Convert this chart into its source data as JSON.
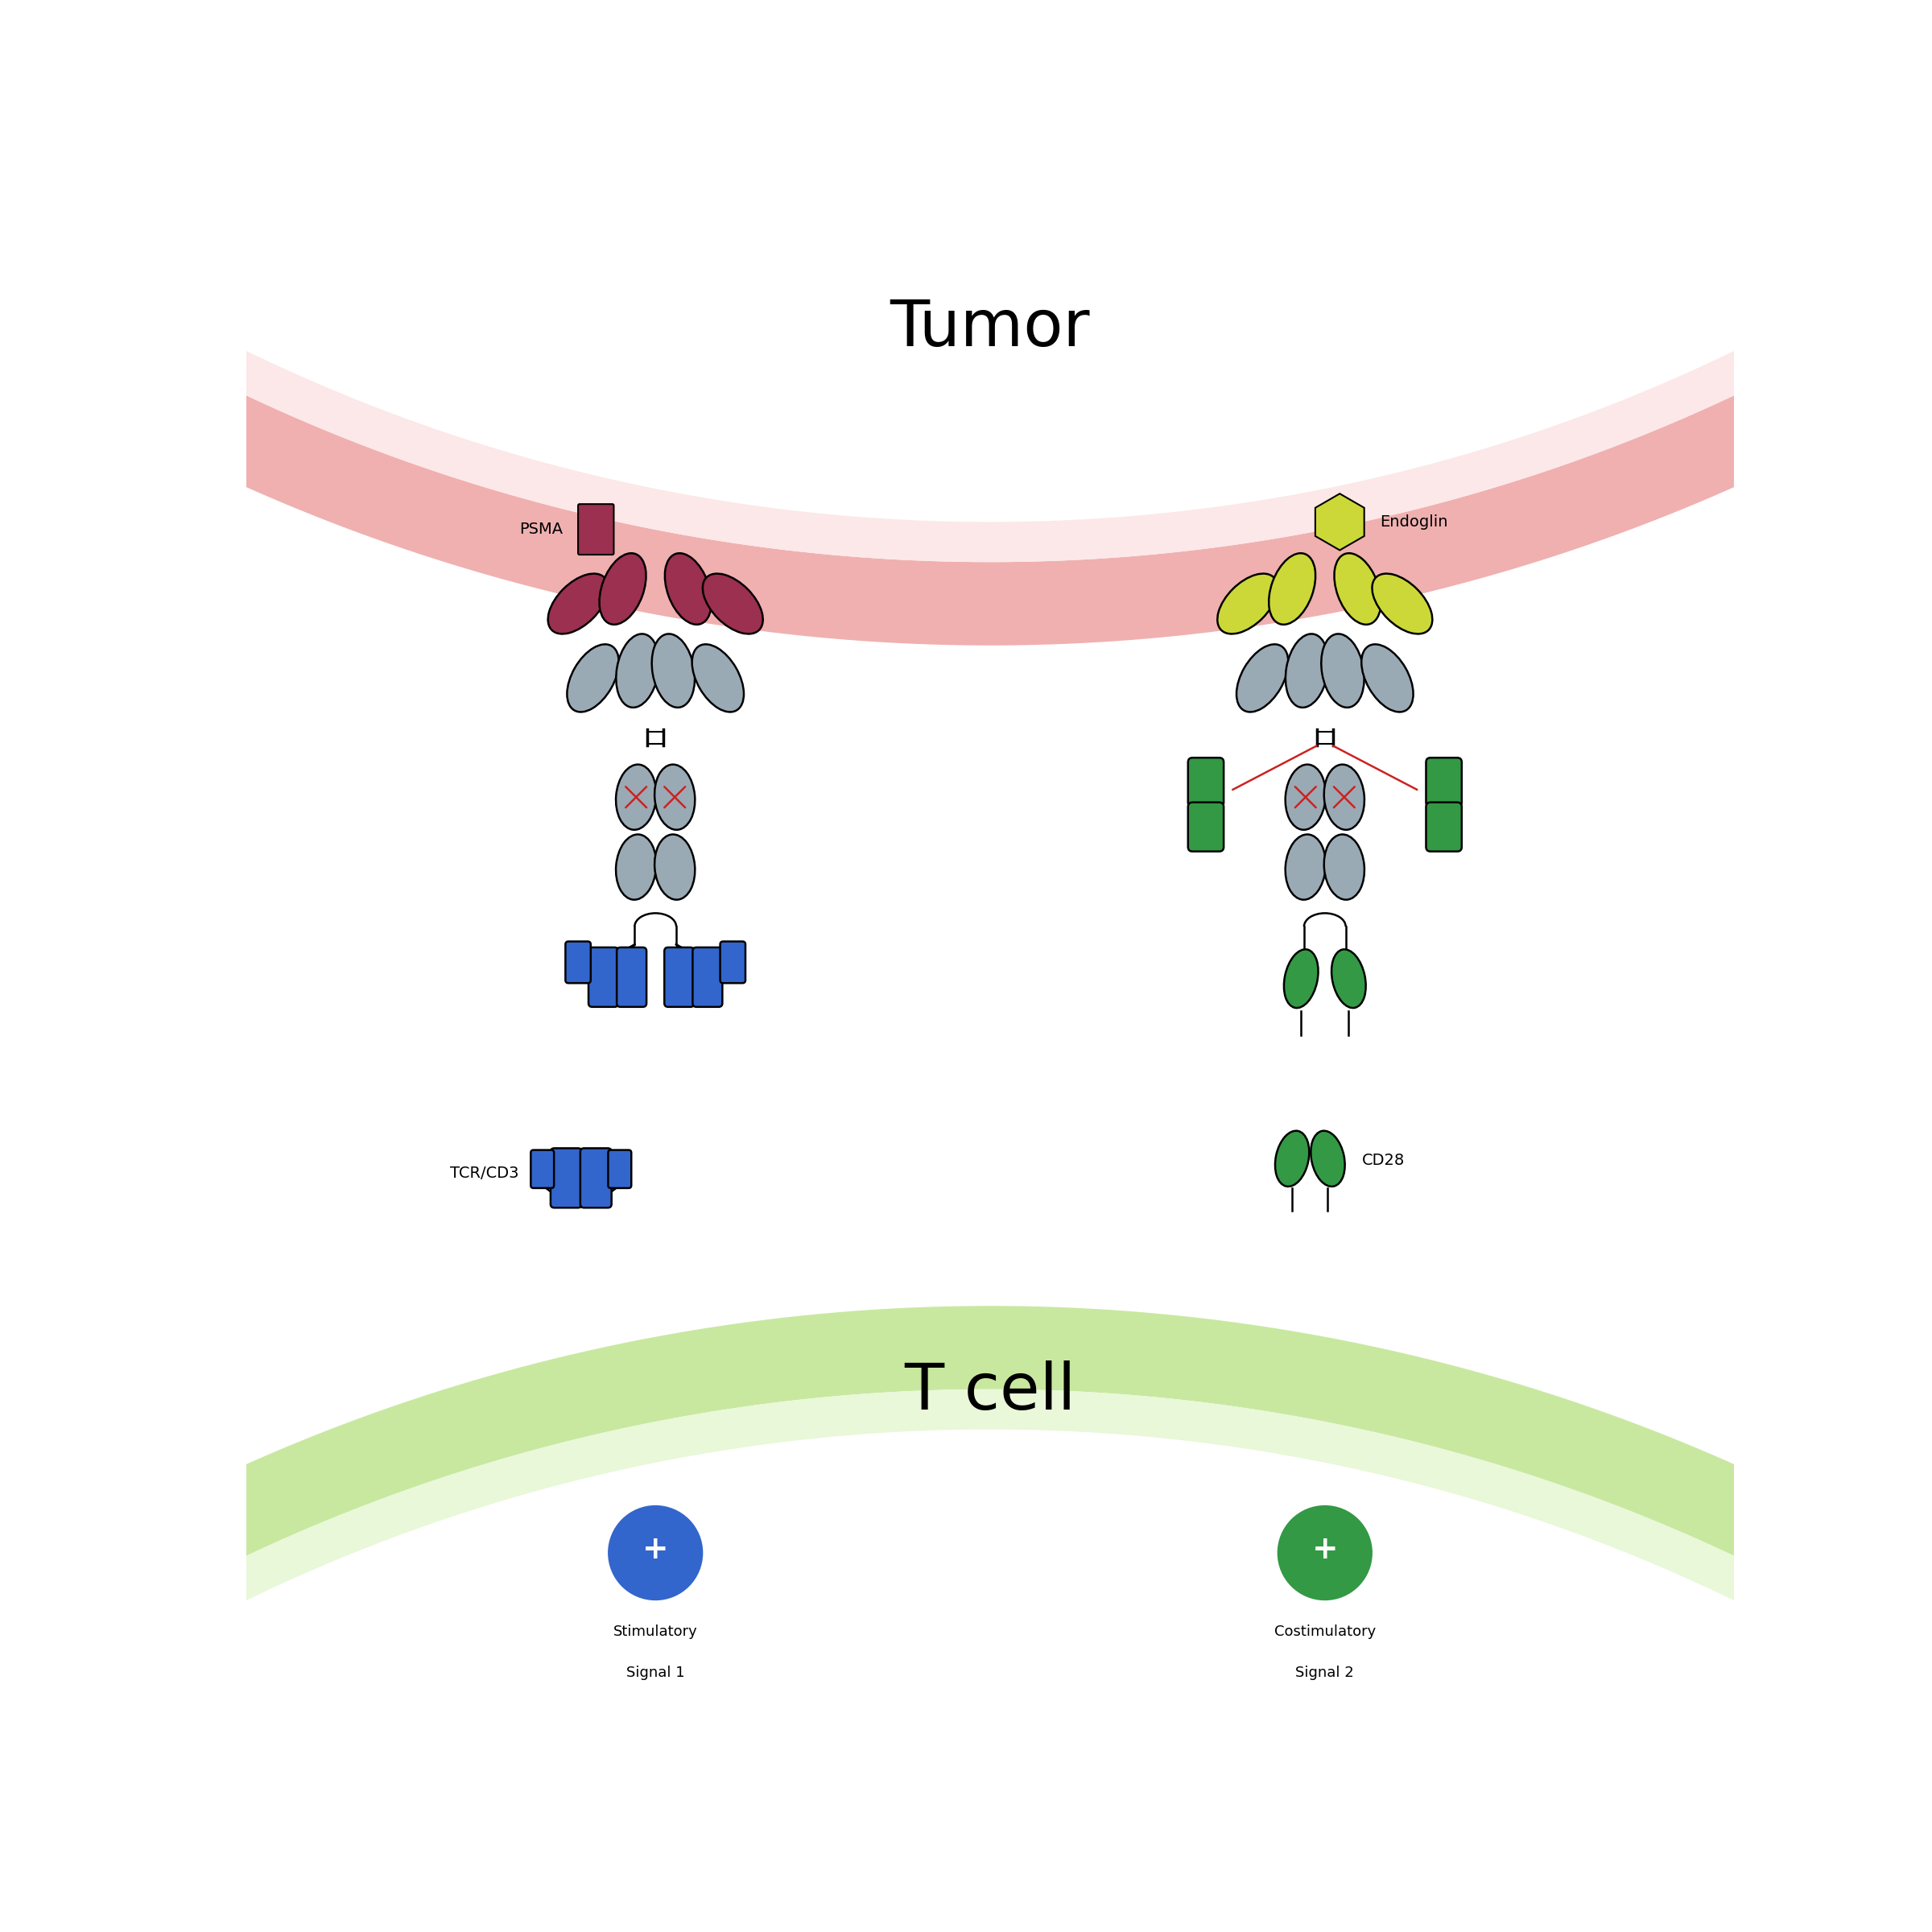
{
  "title_tumor": "Tumor",
  "title_tcell": "T cell",
  "label_psma": "PSMA",
  "label_endoglin": "Endoglin",
  "label_tcr": "TCR/CD3",
  "label_cd28": "CD28",
  "label_signal1_line1": "Stimulatory",
  "label_signal1_line2": "Signal 1",
  "label_signal2_line1": "Costimulatory",
  "label_signal2_line2": "Signal 2",
  "color_psma": "#9b3050",
  "color_endoglin": "#ccd838",
  "color_gray_ellipse": "#9aaab4",
  "color_blue": "#3366cc",
  "color_green": "#339944",
  "color_red_x": "#cc2222",
  "color_tumor_membrane_outer": "#f0b0b0",
  "color_tumor_membrane_inner": "#fce8e8",
  "color_tcell_membrane_outer": "#c8e8a0",
  "color_tcell_membrane_inner": "#e8f8d8",
  "color_signal1_circle": "#3366cc",
  "color_signal2_circle": "#339944",
  "background_color": "#ffffff"
}
